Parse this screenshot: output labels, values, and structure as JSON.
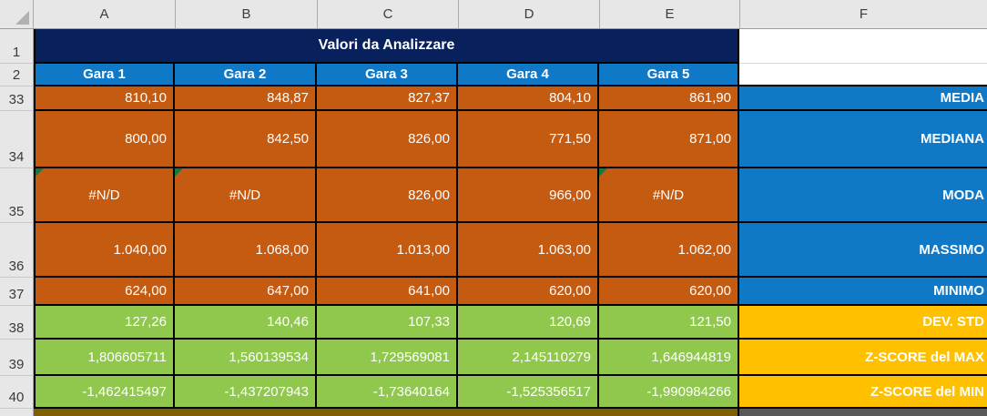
{
  "sheet": {
    "column_headers": [
      "A",
      "B",
      "C",
      "D",
      "E",
      "F"
    ],
    "row_headers": [
      "1",
      "2",
      "33",
      "34",
      "35",
      "36",
      "37",
      "38",
      "39",
      "40"
    ],
    "title": "Valori da Analizzare",
    "race_headers": [
      "Gara 1",
      "Gara 2",
      "Gara 3",
      "Gara 4",
      "Gara 5"
    ],
    "stat_rows": [
      {
        "row": "33",
        "label": "MEDIA",
        "band": "orange",
        "label_band": "blue",
        "error_flags": [],
        "values": [
          "810,10",
          "848,87",
          "827,37",
          "804,10",
          "861,90"
        ]
      },
      {
        "row": "34",
        "label": "MEDIANA",
        "band": "orange",
        "label_band": "blue",
        "error_flags": [],
        "values": [
          "800,00",
          "842,50",
          "826,00",
          "771,50",
          "871,00"
        ]
      },
      {
        "row": "35",
        "label": "MODA",
        "band": "orange",
        "label_band": "blue",
        "error_flags": [
          0,
          1,
          4
        ],
        "values": [
          "#N/D",
          "#N/D",
          "826,00",
          "966,00",
          "#N/D"
        ]
      },
      {
        "row": "36",
        "label": "MASSIMO",
        "band": "orange",
        "label_band": "blue",
        "error_flags": [],
        "values": [
          "1.040,00",
          "1.068,00",
          "1.013,00",
          "1.063,00",
          "1.062,00"
        ]
      },
      {
        "row": "37",
        "label": "MINIMO",
        "band": "orange",
        "label_band": "blue",
        "error_flags": [],
        "values": [
          "624,00",
          "647,00",
          "641,00",
          "620,00",
          "620,00"
        ]
      },
      {
        "row": "38",
        "label": "DEV. STD",
        "band": "green",
        "label_band": "gold",
        "error_flags": [],
        "values": [
          "127,26",
          "140,46",
          "107,33",
          "120,69",
          "121,50"
        ]
      },
      {
        "row": "39",
        "label": "Z-SCORE del MAX",
        "band": "green",
        "label_band": "gold",
        "error_flags": [],
        "values": [
          "1,806605711",
          "1,560139534",
          "1,729569081",
          "2,145110279",
          "1,646944819"
        ]
      },
      {
        "row": "40",
        "label": "Z-SCORE del MIN",
        "band": "green",
        "label_band": "gold",
        "error_flags": [],
        "values": [
          "-1,462415497",
          "-1,437207943",
          "-1,73640164",
          "-1,525356517",
          "-1,990984266"
        ]
      }
    ],
    "error_text": "#N/D"
  },
  "colors": {
    "title_navy": "#08205C",
    "header_blue": "#0F79C8",
    "stat_orange": "#C55A11",
    "stat_green": "#8FC84C",
    "label_gold": "#FFC000",
    "strip_olive": "#7F6000",
    "strip_gray": "#595959",
    "grid_border": "#000000",
    "error_indicator_green": "#107C41"
  }
}
